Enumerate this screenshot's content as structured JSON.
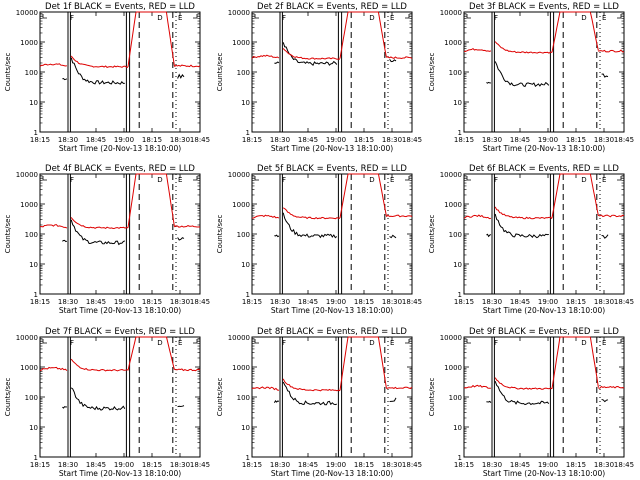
{
  "chart_data": [
    {
      "type": "line",
      "title": "Det 1f BLACK = Events, RED = LLD",
      "xlabel": "Start Time (20-Nov-13 18:10:00)",
      "ylabel": "Counts/sec",
      "yscale": "log",
      "ylim": [
        1,
        10000
      ],
      "x_ticks": [
        "18:15",
        "18:30",
        "18:45",
        "19:00",
        "18:15",
        "18:30",
        "18:45"
      ],
      "y_ticks": [
        "1",
        "10",
        "100",
        "1000",
        "10000"
      ],
      "markers": [
        "F",
        "D",
        "E"
      ],
      "series": [
        {
          "name": "Events",
          "color": "#000000",
          "levels": [
            60,
            45,
            40,
            70
          ]
        },
        {
          "name": "LLD",
          "color": "#dd0000",
          "levels": [
            160,
            150,
            10000,
            160
          ]
        }
      ]
    },
    {
      "type": "line",
      "title": "Det 2f BLACK = Events, RED = LLD",
      "xlabel": "Start Time (20-Nov-13 18:10:00)",
      "ylabel": "Counts/sec",
      "yscale": "log",
      "ylim": [
        1,
        10000
      ],
      "x_ticks": [
        "18:15",
        "18:30",
        "18:45",
        "19:00",
        "18:15",
        "18:30",
        "18:45"
      ],
      "y_ticks": [
        "1",
        "10",
        "100",
        "1000",
        "10000"
      ],
      "markers": [
        "F",
        "D",
        "E"
      ],
      "series": [
        {
          "name": "Events",
          "color": "#000000",
          "levels": [
            200,
            180,
            230,
            250
          ]
        },
        {
          "name": "LLD",
          "color": "#dd0000",
          "levels": [
            300,
            280,
            10000,
            300
          ]
        }
      ]
    },
    {
      "type": "line",
      "title": "Det 3f BLACK = Events, RED = LLD",
      "xlabel": "Start Time (20-Nov-13 18:10:00)",
      "ylabel": "Counts/sec",
      "yscale": "log",
      "ylim": [
        1,
        10000
      ],
      "x_ticks": [
        "18:15",
        "18:30",
        "18:45",
        "19:00",
        "18:15",
        "18:30",
        "18:45"
      ],
      "y_ticks": [
        "1",
        "10",
        "100",
        "1000",
        "10000"
      ],
      "markers": [
        "F",
        "D",
        "E"
      ],
      "series": [
        {
          "name": "Events",
          "color": "#000000",
          "levels": [
            45,
            35,
            50,
            80
          ]
        },
        {
          "name": "LLD",
          "color": "#dd0000",
          "levels": [
            500,
            450,
            10000,
            500
          ]
        }
      ]
    },
    {
      "type": "line",
      "title": "Det 4f BLACK = Events, RED = LLD",
      "xlabel": "Start Time (20-Nov-13 18:10:00)",
      "ylabel": "Counts/sec",
      "yscale": "log",
      "ylim": [
        1,
        10000
      ],
      "x_ticks": [
        "18:15",
        "18:30",
        "18:45",
        "19:00",
        "18:15",
        "18:30",
        "18:45"
      ],
      "y_ticks": [
        "1",
        "10",
        "100",
        "1000",
        "10000"
      ],
      "markers": [
        "F",
        "D",
        "E"
      ],
      "series": [
        {
          "name": "Events",
          "color": "#000000",
          "levels": [
            60,
            50,
            55,
            70
          ]
        },
        {
          "name": "LLD",
          "color": "#dd0000",
          "levels": [
            170,
            160,
            10000,
            180
          ]
        }
      ]
    },
    {
      "type": "line",
      "title": "Det 5f BLACK = Events, RED = LLD",
      "xlabel": "Start Time (20-Nov-13 18:10:00)",
      "ylabel": "Counts/sec",
      "yscale": "log",
      "ylim": [
        1,
        10000
      ],
      "x_ticks": [
        "18:15",
        "18:30",
        "18:45",
        "19:00",
        "18:15",
        "18:30",
        "18:45"
      ],
      "y_ticks": [
        "1",
        "10",
        "100",
        "1000",
        "10000"
      ],
      "markers": [
        "F",
        "D",
        "E"
      ],
      "series": [
        {
          "name": "Events",
          "color": "#000000",
          "levels": [
            90,
            85,
            90,
            80
          ]
        },
        {
          "name": "LLD",
          "color": "#dd0000",
          "levels": [
            350,
            340,
            10000,
            400
          ]
        }
      ]
    },
    {
      "type": "line",
      "title": "Det 6f BLACK = Events, RED = LLD",
      "xlabel": "Start Time (20-Nov-13 18:10:00)",
      "ylabel": "Counts/sec",
      "yscale": "log",
      "ylim": [
        1,
        10000
      ],
      "x_ticks": [
        "18:15",
        "18:30",
        "18:45",
        "19:00",
        "18:15",
        "18:30",
        "18:45"
      ],
      "y_ticks": [
        "1",
        "10",
        "100",
        "1000",
        "10000"
      ],
      "markers": [
        "F",
        "D",
        "E"
      ],
      "series": [
        {
          "name": "Events",
          "color": "#000000",
          "levels": [
            90,
            85,
            90,
            80
          ]
        },
        {
          "name": "LLD",
          "color": "#dd0000",
          "levels": [
            350,
            340,
            10000,
            400
          ]
        }
      ]
    },
    {
      "type": "line",
      "title": "Det 7f BLACK = Events, RED = LLD",
      "xlabel": "Start Time (20-Nov-13 18:10:00)",
      "ylabel": "Counts/sec",
      "yscale": "log",
      "ylim": [
        1,
        10000
      ],
      "x_ticks": [
        "18:15",
        "18:30",
        "18:45",
        "19:00",
        "18:15",
        "18:30",
        "18:45"
      ],
      "y_ticks": [
        "1",
        "10",
        "100",
        "1000",
        "10000"
      ],
      "markers": [
        "F",
        "D",
        "E"
      ],
      "series": [
        {
          "name": "Events",
          "color": "#000000",
          "levels": [
            45,
            40,
            50,
            55
          ]
        },
        {
          "name": "LLD",
          "color": "#dd0000",
          "levels": [
            800,
            780,
            10000,
            800
          ]
        }
      ]
    },
    {
      "type": "line",
      "title": "Det 8f BLACK = Events, RED = LLD",
      "xlabel": "Start Time (20-Nov-13 18:10:00)",
      "ylabel": "Counts/sec",
      "yscale": "log",
      "ylim": [
        1,
        10000
      ],
      "x_ticks": [
        "18:15",
        "18:30",
        "18:45",
        "19:00",
        "18:15",
        "18:30",
        "18:45"
      ],
      "y_ticks": [
        "1",
        "10",
        "100",
        "1000",
        "10000"
      ],
      "markers": [
        "F",
        "D",
        "E"
      ],
      "series": [
        {
          "name": "Events",
          "color": "#000000",
          "levels": [
            70,
            60,
            70,
            80
          ]
        },
        {
          "name": "LLD",
          "color": "#dd0000",
          "levels": [
            180,
            170,
            10000,
            200
          ]
        }
      ]
    },
    {
      "type": "line",
      "title": "Det 9f BLACK = Events, RED = LLD",
      "xlabel": "Start Time (20-Nov-13 18:10:00)",
      "ylabel": "Counts/sec",
      "yscale": "log",
      "ylim": [
        1,
        10000
      ],
      "x_ticks": [
        "18:15",
        "18:30",
        "18:45",
        "19:00",
        "18:15",
        "18:30",
        "18:45"
      ],
      "y_ticks": [
        "1",
        "10",
        "100",
        "1000",
        "10000"
      ],
      "markers": [
        "F",
        "D",
        "E"
      ],
      "series": [
        {
          "name": "Events",
          "color": "#000000",
          "levels": [
            70,
            60,
            70,
            80
          ]
        },
        {
          "name": "LLD",
          "color": "#dd0000",
          "levels": [
            200,
            190,
            10000,
            210
          ]
        }
      ]
    }
  ]
}
